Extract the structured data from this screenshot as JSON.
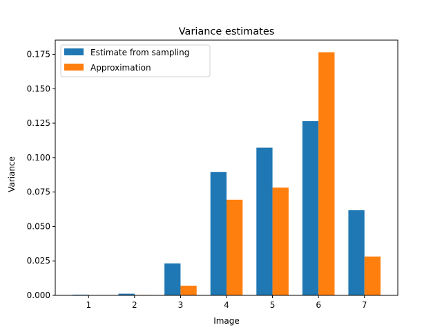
{
  "chart_data": {
    "type": "bar",
    "title": "Variance estimates",
    "xlabel": "Image",
    "ylabel": "Variance",
    "categories": [
      "1",
      "2",
      "3",
      "4",
      "5",
      "6",
      "7"
    ],
    "series": [
      {
        "name": "Estimate from sampling",
        "color": "#1f77b4",
        "values": [
          0.0005,
          0.0012,
          0.0232,
          0.0895,
          0.1072,
          0.1265,
          0.0618
        ]
      },
      {
        "name": "Approximation",
        "color": "#ff7f0e",
        "values": [
          0.0001,
          0.0003,
          0.007,
          0.0694,
          0.0782,
          0.1765,
          0.0282
        ]
      }
    ],
    "ylim": [
      0,
      0.1853
    ],
    "yticks": [
      "0.000",
      "0.025",
      "0.050",
      "0.075",
      "0.100",
      "0.125",
      "0.150",
      "0.175"
    ],
    "legend": "top-left",
    "grid": false
  }
}
